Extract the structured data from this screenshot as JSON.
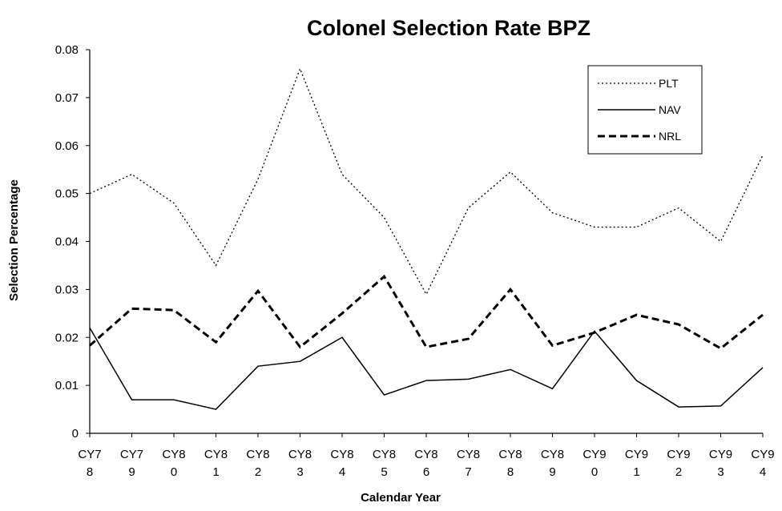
{
  "chart_data": {
    "type": "line",
    "title": "Colonel Selection Rate BPZ",
    "xlabel": "Calendar Year",
    "ylabel": "Selection Percentage",
    "categories": [
      "CY78",
      "CY79",
      "CY80",
      "CY81",
      "CY82",
      "CY83",
      "CY84",
      "CY85",
      "CY86",
      "CY87",
      "CY88",
      "CY89",
      "CY90",
      "CY91",
      "CY92",
      "CY93",
      "CY94"
    ],
    "series": [
      {
        "name": "PLT",
        "color": "#000000",
        "dash": "dotted",
        "values": [
          0.05,
          0.054,
          0.048,
          0.035,
          0.053,
          0.076,
          0.054,
          0.045,
          0.029,
          0.047,
          0.0545,
          0.046,
          0.043,
          0.043,
          0.047,
          0.04,
          0.058
        ]
      },
      {
        "name": "NAV",
        "color": "#000000",
        "dash": "solid",
        "values": [
          0.022,
          0.007,
          0.007,
          0.005,
          0.014,
          0.015,
          0.02,
          0.008,
          0.011,
          0.0113,
          0.0133,
          0.0093,
          0.0213,
          0.011,
          0.0055,
          0.0057,
          0.0137
        ]
      },
      {
        "name": "NRL",
        "color": "#000000",
        "dash": "dashed",
        "values": [
          0.0183,
          0.026,
          0.0257,
          0.019,
          0.0297,
          0.018,
          0.025,
          0.0327,
          0.018,
          0.0197,
          0.03,
          0.0183,
          0.021,
          0.0247,
          0.0227,
          0.0177,
          0.0247
        ]
      }
    ],
    "ylim": [
      0,
      0.08
    ],
    "yticks": [
      0,
      0.01,
      0.02,
      0.03,
      0.04,
      0.05,
      0.06,
      0.07,
      0.08
    ],
    "grid": false,
    "legend": "upper right"
  }
}
